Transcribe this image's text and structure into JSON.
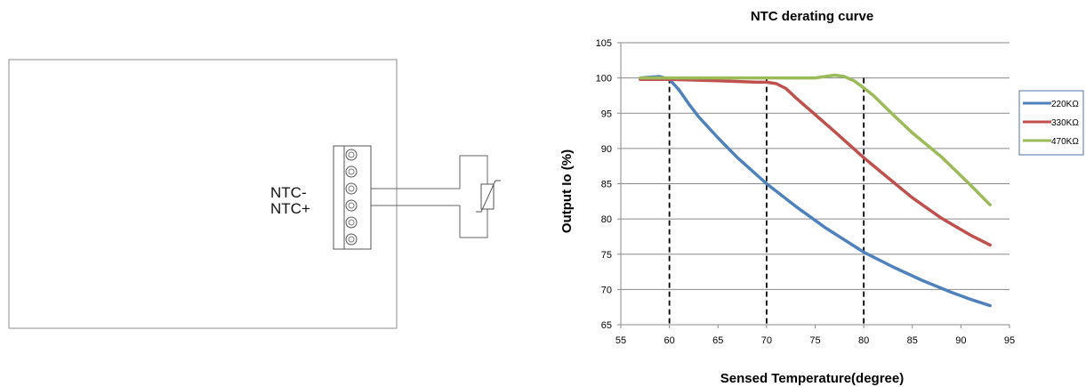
{
  "wiring": {
    "ntc_minus_label": "NTC-",
    "ntc_plus_label": "NTC+"
  },
  "chart_data": {
    "type": "line",
    "title": "NTC  derating curve",
    "xlabel": "Sensed Temperature(degree)",
    "ylabel": "Output Io (%)",
    "xlim": [
      55,
      95
    ],
    "ylim": [
      65,
      105
    ],
    "x_ticks": [
      55,
      60,
      65,
      70,
      75,
      80,
      85,
      90,
      95
    ],
    "y_ticks": [
      65,
      70,
      75,
      80,
      85,
      90,
      95,
      100,
      105
    ],
    "grid": "horizontal",
    "legend_position": "right",
    "reference_lines_x": [
      60,
      70,
      80
    ],
    "series": [
      {
        "name": "220KΩ",
        "color": "#4f81bd",
        "x": [
          57,
          58,
          59,
          60,
          61,
          62,
          63,
          65,
          67,
          70,
          73,
          76,
          80,
          83,
          86,
          89,
          91,
          93
        ],
        "y": [
          100,
          100.1,
          100.2,
          99.8,
          98.3,
          96.3,
          94.5,
          91.5,
          88.7,
          85,
          81.8,
          78.8,
          75.3,
          73.2,
          71.3,
          69.6,
          68.6,
          67.7
        ]
      },
      {
        "name": "330KΩ",
        "color": "#c0504d",
        "x": [
          57,
          60,
          65,
          69,
          70,
          71,
          72,
          73,
          75,
          77,
          80,
          82,
          85,
          88,
          91,
          93
        ],
        "y": [
          99.8,
          99.8,
          99.6,
          99.4,
          99.4,
          99.2,
          98.5,
          97.2,
          94.8,
          92.4,
          88.7,
          86.4,
          83,
          80.1,
          77.7,
          76.3
        ]
      },
      {
        "name": "470KΩ",
        "color": "#9bbb59",
        "x": [
          57,
          60,
          65,
          70,
          74,
          75,
          76,
          77,
          78,
          79,
          80,
          81,
          83,
          85,
          88,
          91,
          93
        ],
        "y": [
          100,
          100,
          100,
          100,
          100,
          100,
          100.2,
          100.4,
          100.2,
          99.6,
          98.6,
          97.5,
          94.8,
          92.2,
          88.8,
          84.8,
          82
        ]
      }
    ]
  }
}
